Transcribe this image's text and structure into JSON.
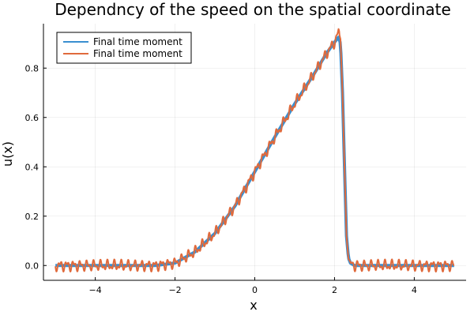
{
  "chart_data": {
    "type": "line",
    "title": "Dependncy of the speed on the spatial coordinate",
    "xlabel": "x",
    "ylabel": "u(x)",
    "xlim": [
      -5.3,
      5.3
    ],
    "ylim": [
      -0.06,
      0.98
    ],
    "x_ticks": [
      -4,
      -2,
      0,
      2,
      4
    ],
    "x_tick_labels": [
      "−4",
      "−2",
      "0",
      "2",
      "4"
    ],
    "y_ticks": [
      0.0,
      0.2,
      0.4,
      0.6,
      0.8
    ],
    "y_tick_labels": [
      "0.0",
      "0.2",
      "0.4",
      "0.6",
      "0.8"
    ],
    "grid": true,
    "legend_position": "top-left",
    "series": [
      {
        "name": "Final time moment",
        "color": "#3a8fd0",
        "kind": "smooth",
        "x": [
          -5.0,
          -2.5,
          -2.0,
          -1.5,
          -1.0,
          -0.5,
          0.0,
          0.5,
          1.0,
          1.5,
          1.8,
          2.0,
          2.1,
          2.15,
          2.2,
          2.25,
          2.3,
          2.35,
          2.4,
          2.5,
          3.0,
          5.0
        ],
        "y": [
          0.0,
          0.0,
          0.01,
          0.055,
          0.13,
          0.24,
          0.38,
          0.52,
          0.655,
          0.78,
          0.86,
          0.905,
          0.925,
          0.9,
          0.7,
          0.4,
          0.12,
          0.03,
          0.01,
          0.0,
          0.0,
          0.0
        ]
      },
      {
        "name": "Final time moment",
        "color": "#e06a3c",
        "kind": "oscillating",
        "x": [
          -5.0,
          -2.5,
          -2.0,
          -1.5,
          -1.0,
          -0.5,
          0.0,
          0.5,
          1.0,
          1.5,
          1.8,
          2.0,
          2.1,
          2.15,
          2.2,
          2.25,
          2.3,
          2.35,
          2.4,
          2.5,
          3.0,
          5.0
        ],
        "y": [
          0.0,
          0.0,
          0.01,
          0.055,
          0.13,
          0.24,
          0.38,
          0.52,
          0.655,
          0.78,
          0.86,
          0.905,
          0.945,
          0.92,
          0.7,
          0.4,
          0.12,
          0.03,
          0.01,
          0.0,
          0.0,
          0.0
        ],
        "noise_amplitude": 0.025
      }
    ]
  }
}
